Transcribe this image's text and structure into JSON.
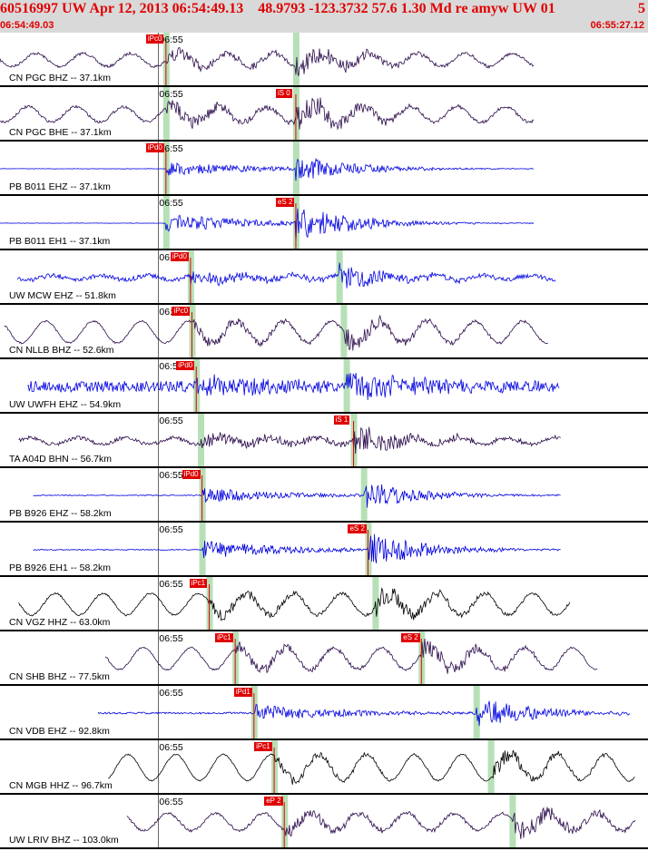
{
  "header": {
    "title": "60516997 UW Apr 12, 2013 06:54:49.13    48.9793 -123.3732 57.6 1.30 Md re amyw UW 01",
    "event_number": "5",
    "time_start": "06:54:49.03",
    "time_end": "06:55:27.12"
  },
  "colors": {
    "header_bg": "#d9d9d9",
    "header_text": "#e00000",
    "pick_red": "#e00000",
    "phase_green": "#b7e0b7"
  },
  "chart_data": {
    "type": "line",
    "title": "60516997 UW Apr 12, 2013 06:54:49.13    48.9793 -123.3732 57.6 1.30 Md re amyw UW 01",
    "x_range": [
      "06:54:49.03",
      "06:55:27.12"
    ],
    "xlabel": "",
    "ylabel": "",
    "tick_label": "06:55",
    "grid": true,
    "series": [
      {
        "name": "CN PGC BHZ -- 37.1km",
        "color": "#2a0a4a",
        "pick": "iPc0",
        "pick_s": "",
        "p_time_s": 11.5,
        "s_time_s": 20.5,
        "start_s": 0,
        "end_s": 37,
        "amp": 12,
        "noise": 3,
        "wave": 0.6
      },
      {
        "name": "CN PGC BHE -- 37.1km",
        "color": "#2a0a4a",
        "pick": "",
        "pick_s": "iS 0",
        "p_time_s": 11.5,
        "s_time_s": 20.5,
        "start_s": 0,
        "end_s": 37,
        "amp": 16,
        "noise": 3,
        "wave": 0.7
      },
      {
        "name": "PB B011 EHZ -- 37.1km",
        "color": "#0000e0",
        "pick": "iPd0",
        "pick_s": "",
        "p_time_s": 11.5,
        "s_time_s": 20.5,
        "start_s": 0,
        "end_s": 37,
        "amp": 14,
        "noise": 0.5,
        "wave": 0
      },
      {
        "name": "PB B011 EH1 -- 37.1km",
        "color": "#0000e0",
        "pick": "",
        "pick_s": "eS 2",
        "p_time_s": 11.5,
        "s_time_s": 20.5,
        "start_s": 0,
        "end_s": 37,
        "amp": 18,
        "noise": 0.5,
        "wave": 0
      },
      {
        "name": "UW MCW EHZ -- 51.8km",
        "color": "#0000e0",
        "pick": "iPd0",
        "pick_s": "",
        "p_time_s": 13.2,
        "s_time_s": 23.5,
        "start_s": 1.2,
        "end_s": 38.5,
        "amp": 12,
        "noise": 5,
        "wave": 0.2
      },
      {
        "name": "CN NLLB BHZ -- 52.6km",
        "color": "#2a0a4a",
        "pick": "iPc0",
        "pick_s": "",
        "p_time_s": 13.3,
        "s_time_s": 23.8,
        "start_s": 0.3,
        "end_s": 38,
        "amp": 12,
        "noise": 2,
        "wave": 1
      },
      {
        "name": "UW UWFH EHZ -- 54.9km",
        "color": "#0000e0",
        "pick": "iPd0",
        "pick_s": "",
        "p_time_s": 13.6,
        "s_time_s": 24.0,
        "start_s": 1.9,
        "end_s": 38.8,
        "amp": 18,
        "noise": 12,
        "wave": 0
      },
      {
        "name": "TA A04D BHN -- 56.7km",
        "color": "#2a0a4a",
        "pick": "",
        "pick_s": "iS 1",
        "p_time_s": 13.9,
        "s_time_s": 24.5,
        "start_s": 1.3,
        "end_s": 38.9,
        "amp": 14,
        "noise": 4,
        "wave": 0.3
      },
      {
        "name": "PB B926 EHZ -- 58.2km",
        "color": "#0000e0",
        "pick": "iPd0",
        "pick_s": "",
        "p_time_s": 14.0,
        "s_time_s": 25.2,
        "start_s": 2.3,
        "end_s": 38.9,
        "amp": 14,
        "noise": 1,
        "wave": 0
      },
      {
        "name": "PB B926 EH1 -- 58.2km",
        "color": "#0000e0",
        "pick": "",
        "pick_s": "eS 2",
        "p_time_s": 14.0,
        "s_time_s": 25.5,
        "start_s": 2.3,
        "end_s": 38.9,
        "amp": 18,
        "noise": 1,
        "wave": 0
      },
      {
        "name": "CN VGZ HHZ -- 63.0km",
        "color": "#000000",
        "pick": "iPc1",
        "pick_s": "",
        "p_time_s": 14.5,
        "s_time_s": 26.0,
        "start_s": 1.3,
        "end_s": 39.5,
        "amp": 12,
        "noise": 2,
        "wave": 1
      },
      {
        "name": "CN SHB BHZ -- 77.5km",
        "color": "#2a0a4a",
        "pick": "iPc1",
        "pick_s": "eS 2",
        "p_time_s": 16.3,
        "s_time_s": 29.2,
        "start_s": 7.3,
        "end_s": 41.4,
        "amp": 12,
        "noise": 2,
        "wave": 1
      },
      {
        "name": "CN VDB EHZ -- 92.8km",
        "color": "#0000e0",
        "pick": "iPd1",
        "pick_s": "",
        "p_time_s": 17.6,
        "s_time_s": 33.0,
        "start_s": 6.8,
        "end_s": 43.7,
        "amp": 16,
        "noise": 2,
        "wave": 0
      },
      {
        "name": "CN MGB HHZ -- 96.7km",
        "color": "#000000",
        "pick": "iPc1",
        "pick_s": "",
        "p_time_s": 19.0,
        "s_time_s": 34.0,
        "start_s": 7.5,
        "end_s": 45,
        "amp": 10,
        "noise": 1.5,
        "wave": 1.2
      },
      {
        "name": "UW LRIV BHZ -- 103.0km",
        "color": "#2a0a4a",
        "pick": "eP 2",
        "pick_s": "",
        "p_time_s": 19.7,
        "s_time_s": 35.5,
        "start_s": 8.8,
        "end_s": 45,
        "amp": 12,
        "noise": 3,
        "wave": 0.8
      }
    ]
  }
}
